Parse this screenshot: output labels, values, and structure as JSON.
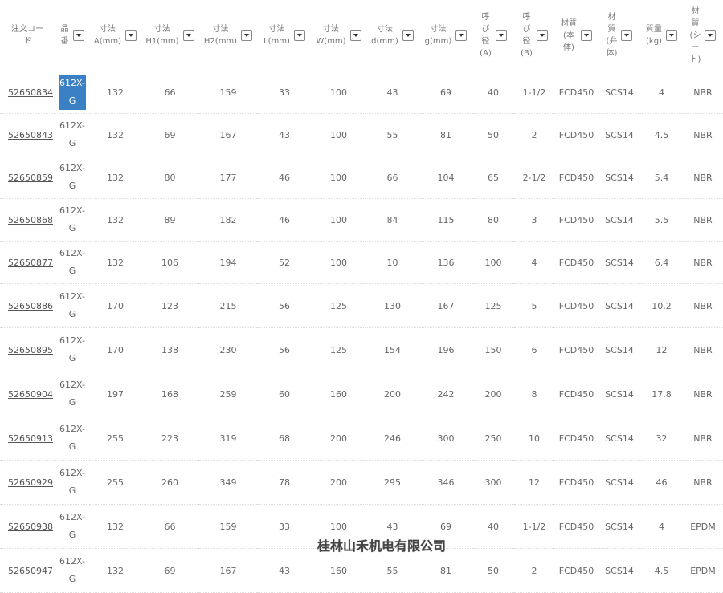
{
  "headers": [
    {
      "label": [
        "注文コー",
        "ド"
      ],
      "filter": false
    },
    {
      "label": [
        "品",
        "番"
      ],
      "filter": true
    },
    {
      "label": [
        "寸法",
        "A(mm)"
      ],
      "filter": true
    },
    {
      "label": [
        "寸法",
        "H1(mm)"
      ],
      "filter": true
    },
    {
      "label": [
        "寸法",
        "H2(mm)"
      ],
      "filter": true
    },
    {
      "label": [
        "寸法",
        "L(mm)"
      ],
      "filter": true
    },
    {
      "label": [
        "寸法",
        "W(mm)"
      ],
      "filter": true
    },
    {
      "label": [
        "寸法",
        "d(mm)"
      ],
      "filter": true
    },
    {
      "label": [
        "寸法",
        "g(mm)"
      ],
      "filter": true
    },
    {
      "label": [
        "呼",
        "び",
        "径",
        "(A)"
      ],
      "filter": true
    },
    {
      "label": [
        "呼",
        "び",
        "径",
        "(B)"
      ],
      "filter": true
    },
    {
      "label": [
        "材質",
        "(本",
        "体)"
      ],
      "filter": true
    },
    {
      "label": [
        "材",
        "質",
        "(弁",
        "体)"
      ],
      "filter": true
    },
    {
      "label": [
        "質量",
        "(kg)"
      ],
      "filter": true
    },
    {
      "label": [
        "材",
        "質",
        "(シ",
        "ー",
        "ト)"
      ],
      "filter": true
    }
  ],
  "rows": [
    [
      "52650834",
      "612X-G",
      "132",
      "66",
      "159",
      "33",
      "100",
      "43",
      "69",
      "40",
      "1-1/2",
      "FCD450",
      "SCS14",
      "4",
      "NBR"
    ],
    [
      "52650843",
      "612X-G",
      "132",
      "69",
      "167",
      "43",
      "100",
      "55",
      "81",
      "50",
      "2",
      "FCD450",
      "SCS14",
      "4.5",
      "NBR"
    ],
    [
      "52650859",
      "612X-G",
      "132",
      "80",
      "177",
      "46",
      "100",
      "66",
      "104",
      "65",
      "2-1/2",
      "FCD450",
      "SCS14",
      "5.4",
      "NBR"
    ],
    [
      "52650868",
      "612X-G",
      "132",
      "89",
      "182",
      "46",
      "100",
      "84",
      "115",
      "80",
      "3",
      "FCD450",
      "SCS14",
      "5.5",
      "NBR"
    ],
    [
      "52650877",
      "612X-G",
      "132",
      "106",
      "194",
      "52",
      "100",
      "10",
      "136",
      "100",
      "4",
      "FCD450",
      "SCS14",
      "6.4",
      "NBR"
    ],
    [
      "52650886",
      "612X-G",
      "170",
      "123",
      "215",
      "56",
      "125",
      "130",
      "167",
      "125",
      "5",
      "FCD450",
      "SCS14",
      "10.2",
      "NBR"
    ],
    [
      "52650895",
      "612X-G",
      "170",
      "138",
      "230",
      "56",
      "125",
      "154",
      "196",
      "150",
      "6",
      "FCD450",
      "SCS14",
      "12",
      "NBR"
    ],
    [
      "52650904",
      "612X-G",
      "197",
      "168",
      "259",
      "60",
      "160",
      "200",
      "242",
      "200",
      "8",
      "FCD450",
      "SCS14",
      "17.8",
      "NBR"
    ],
    [
      "52650913",
      "612X-G",
      "255",
      "223",
      "319",
      "68",
      "200",
      "246",
      "300",
      "250",
      "10",
      "FCD450",
      "SCS14",
      "32",
      "NBR"
    ],
    [
      "52650929",
      "612X-G",
      "255",
      "260",
      "349",
      "78",
      "200",
      "295",
      "346",
      "300",
      "12",
      "FCD450",
      "SCS14",
      "46",
      "NBR"
    ],
    [
      "52650938",
      "612X-G",
      "132",
      "66",
      "159",
      "33",
      "100",
      "43",
      "69",
      "40",
      "1-1/2",
      "FCD450",
      "SCS14",
      "4",
      "EPDM"
    ],
    [
      "52650947",
      "612X-G",
      "132",
      "69",
      "167",
      "43",
      "160",
      "55",
      "81",
      "50",
      "2",
      "FCD450",
      "SCS14",
      "4.5",
      "EPDM"
    ]
  ],
  "selected_row": 0,
  "watermark": "桂林山禾机电有限公司"
}
